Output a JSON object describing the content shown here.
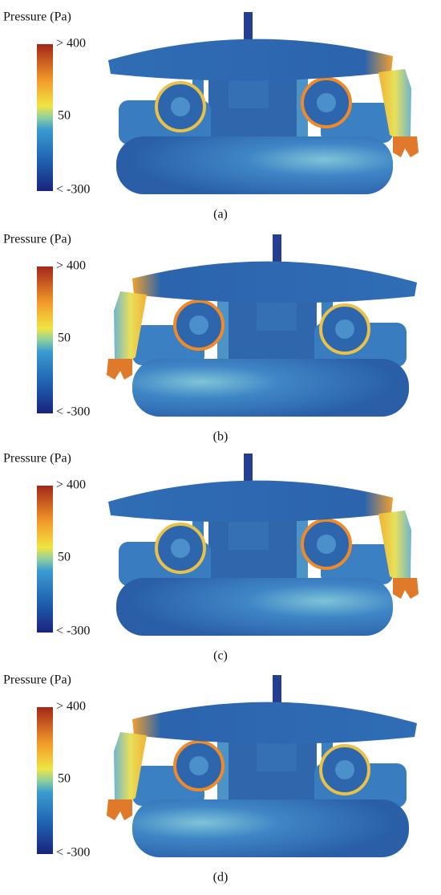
{
  "panels": [
    {
      "title": "Pressure (Pa)",
      "max_label": "> 400",
      "mid_label": "50",
      "min_label": "< -300",
      "caption": "(a)",
      "mirrored": false
    },
    {
      "title": "Pressure (Pa)",
      "max_label": "> 400",
      "mid_label": "50",
      "min_label": "< -300",
      "caption": "(b)",
      "mirrored": true
    },
    {
      "title": "Pressure (Pa)",
      "max_label": "> 400",
      "mid_label": "50",
      "min_label": "< -300",
      "caption": "(c)",
      "mirrored": false
    },
    {
      "title": "Pressure (Pa)",
      "max_label": "> 400",
      "mid_label": "50",
      "min_label": "< -300",
      "caption": "(d)",
      "mirrored": true
    }
  ]
}
